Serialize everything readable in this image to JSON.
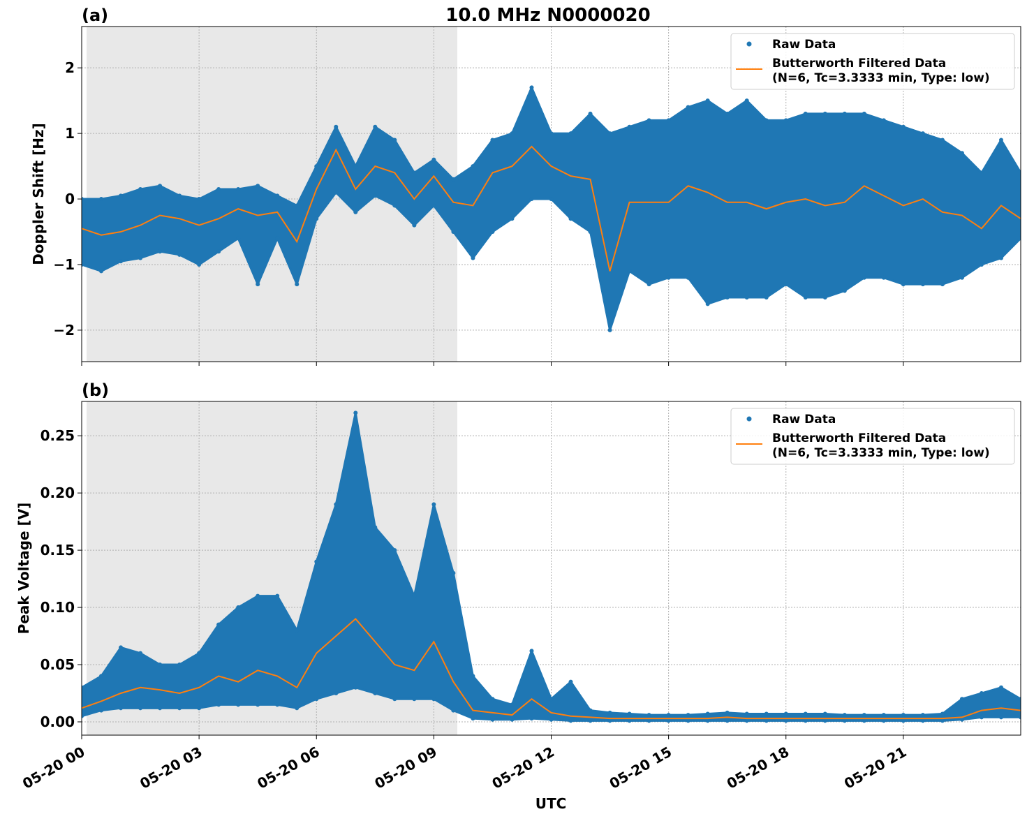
{
  "title": "10.0 MHz N0000020",
  "colors": {
    "raw": "#1f77b4",
    "filtered": "#ff7f0e",
    "night_shade": "#e8e8e8",
    "grid": "#b0b0b0"
  },
  "chart_data": [
    {
      "panel_label": "(a)",
      "type": "scatter",
      "ylabel": "Doppler Shift [Hz]",
      "xlabel": "",
      "xlim_hours": [
        0,
        24
      ],
      "ylim": [
        -2.48,
        2.63
      ],
      "yticks": [
        -2,
        -1,
        0,
        1,
        2
      ],
      "ytick_labels": [
        "−2",
        "−1",
        "0",
        "1",
        "2"
      ],
      "grid": true,
      "legend_placement": "top-right",
      "shaded_region_hours": [
        0.125,
        9.6
      ],
      "x_hours": [
        0,
        0.5,
        1,
        1.5,
        2,
        2.5,
        3,
        3.5,
        4,
        4.5,
        5,
        5.5,
        6,
        6.5,
        7,
        7.5,
        8,
        8.5,
        9,
        9.5,
        10,
        10.5,
        11,
        11.5,
        12,
        12.5,
        13,
        13.5,
        14,
        14.5,
        15,
        15.5,
        16,
        16.5,
        17,
        17.5,
        18,
        18.5,
        19,
        19.5,
        20,
        20.5,
        21,
        21.5,
        22,
        22.5,
        23,
        23.5,
        24
      ],
      "series": [
        {
          "name": "Raw Data",
          "kind": "scatter-envelope",
          "min": [
            -1.0,
            -1.1,
            -0.95,
            -0.9,
            -0.8,
            -0.85,
            -1.0,
            -0.8,
            -0.6,
            -1.3,
            -0.6,
            -1.3,
            -0.3,
            0.1,
            -0.2,
            0.05,
            -0.1,
            -0.4,
            -0.1,
            -0.5,
            -0.9,
            -0.5,
            -0.3,
            0.0,
            0.0,
            -0.3,
            -0.5,
            -2.0,
            -1.1,
            -1.3,
            -1.2,
            -1.2,
            -1.6,
            -1.5,
            -1.5,
            -1.5,
            -1.3,
            -1.5,
            -1.5,
            -1.4,
            -1.2,
            -1.2,
            -1.3,
            -1.3,
            -1.3,
            -1.2,
            -1.0,
            -0.9,
            -0.6
          ],
          "max": [
            0.0,
            0.0,
            0.05,
            0.15,
            0.2,
            0.05,
            0.0,
            0.15,
            0.15,
            0.2,
            0.05,
            -0.1,
            0.5,
            1.1,
            0.5,
            1.1,
            0.9,
            0.4,
            0.6,
            0.3,
            0.5,
            0.9,
            1.0,
            1.7,
            1.0,
            1.0,
            1.3,
            1.0,
            1.1,
            1.2,
            1.2,
            1.4,
            1.5,
            1.3,
            1.5,
            1.2,
            1.2,
            1.3,
            1.3,
            1.3,
            1.3,
            1.2,
            1.1,
            1.0,
            0.9,
            0.7,
            0.4,
            0.9,
            0.4
          ]
        },
        {
          "name": "Butterworth Filtered Data",
          "name_line2": "(N=6, Tc=3.3333 min, Type: low)",
          "kind": "line",
          "values": [
            -0.45,
            -0.55,
            -0.5,
            -0.4,
            -0.25,
            -0.3,
            -0.4,
            -0.3,
            -0.15,
            -0.25,
            -0.2,
            -0.65,
            0.15,
            0.75,
            0.15,
            0.5,
            0.4,
            0.0,
            0.35,
            -0.05,
            -0.1,
            0.4,
            0.5,
            0.8,
            0.5,
            0.35,
            0.3,
            -1.1,
            -0.05,
            -0.05,
            -0.05,
            0.2,
            0.1,
            -0.05,
            -0.05,
            -0.15,
            -0.05,
            0.0,
            -0.1,
            -0.05,
            0.2,
            0.05,
            -0.1,
            0.0,
            -0.2,
            -0.25,
            -0.45,
            -0.1,
            -0.3
          ]
        }
      ]
    },
    {
      "panel_label": "(b)",
      "type": "scatter",
      "ylabel": "Peak Voltage [V]",
      "xlabel": "UTC",
      "xlim_hours": [
        0,
        24
      ],
      "xticks_hours": [
        0,
        3,
        6,
        9,
        12,
        15,
        18,
        21
      ],
      "xtick_labels": [
        "05-20 00",
        "05-20 03",
        "05-20 06",
        "05-20 09",
        "05-20 12",
        "05-20 15",
        "05-20 18",
        "05-20 21"
      ],
      "ylim": [
        -0.0116,
        0.28
      ],
      "yticks": [
        0,
        0.05,
        0.1,
        0.15,
        0.2,
        0.25
      ],
      "ytick_labels": [
        "0.00",
        "0.05",
        "0.10",
        "0.15",
        "0.20",
        "0.25"
      ],
      "grid": true,
      "legend_placement": "top-right",
      "shaded_region_hours": [
        0.125,
        9.6
      ],
      "x_hours": [
        0,
        0.5,
        1,
        1.5,
        2,
        2.5,
        3,
        3.5,
        4,
        4.5,
        5,
        5.5,
        6,
        6.5,
        7,
        7.5,
        8,
        8.5,
        9,
        9.5,
        10,
        10.5,
        11,
        11.5,
        12,
        12.5,
        13,
        13.5,
        14,
        14.5,
        15,
        15.5,
        16,
        16.5,
        17,
        17.5,
        18,
        18.5,
        19,
        19.5,
        20,
        20.5,
        21,
        21.5,
        22,
        22.5,
        23,
        23.5,
        24
      ],
      "series": [
        {
          "name": "Raw Data",
          "kind": "scatter-envelope",
          "min": [
            0.005,
            0.01,
            0.012,
            0.012,
            0.012,
            0.012,
            0.012,
            0.015,
            0.015,
            0.015,
            0.015,
            0.012,
            0.02,
            0.025,
            0.03,
            0.025,
            0.02,
            0.02,
            0.02,
            0.01,
            0.003,
            0.002,
            0.002,
            0.003,
            0.002,
            0.001,
            0.001,
            0.001,
            0.001,
            0.001,
            0.001,
            0.001,
            0.001,
            0.001,
            0.001,
            0.001,
            0.001,
            0.001,
            0.001,
            0.001,
            0.001,
            0.001,
            0.001,
            0.001,
            0.001,
            0.002,
            0.004,
            0.004,
            0.004
          ],
          "max": [
            0.03,
            0.04,
            0.065,
            0.06,
            0.05,
            0.05,
            0.06,
            0.085,
            0.1,
            0.11,
            0.11,
            0.08,
            0.14,
            0.19,
            0.27,
            0.17,
            0.15,
            0.11,
            0.19,
            0.13,
            0.04,
            0.02,
            0.015,
            0.062,
            0.02,
            0.035,
            0.01,
            0.008,
            0.007,
            0.006,
            0.006,
            0.006,
            0.007,
            0.008,
            0.007,
            0.007,
            0.007,
            0.007,
            0.007,
            0.006,
            0.006,
            0.006,
            0.006,
            0.006,
            0.007,
            0.02,
            0.025,
            0.03,
            0.02
          ]
        },
        {
          "name": "Butterworth Filtered Data",
          "name_line2": "(N=6, Tc=3.3333 min, Type: low)",
          "kind": "line",
          "values": [
            0.012,
            0.018,
            0.025,
            0.03,
            0.028,
            0.025,
            0.03,
            0.04,
            0.035,
            0.045,
            0.04,
            0.03,
            0.06,
            0.075,
            0.09,
            0.07,
            0.05,
            0.045,
            0.07,
            0.035,
            0.01,
            0.008,
            0.006,
            0.02,
            0.008,
            0.005,
            0.004,
            0.003,
            0.003,
            0.003,
            0.003,
            0.003,
            0.003,
            0.004,
            0.003,
            0.003,
            0.003,
            0.003,
            0.003,
            0.003,
            0.003,
            0.003,
            0.003,
            0.003,
            0.003,
            0.004,
            0.01,
            0.012,
            0.01
          ]
        }
      ]
    }
  ]
}
